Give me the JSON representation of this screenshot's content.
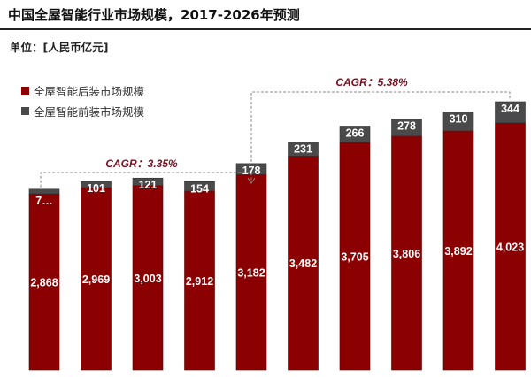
{
  "title": "中国全屋智能行业市场规模，2017-2026年预测",
  "unit": "单位：[人民币亿元]",
  "colors": {
    "after": "#8b0000",
    "front": "#4a4a4a"
  },
  "chart_data": {
    "type": "bar",
    "stacked": true,
    "title": "中国全屋智能行业市场规模，2017-2026年预测",
    "ylabel": "单位：[人民币亿元]",
    "legend": "top-left",
    "grid": false,
    "series": [
      {
        "name": "全屋智能后装市场规模",
        "values": [
          2868,
          2969,
          3003,
          2912,
          3182,
          3482,
          3705,
          3806,
          3892,
          4023
        ],
        "labels": [
          "2,868",
          "2,969",
          "3,003",
          "2,912",
          "3,182",
          "3,482",
          "3,705",
          "3,806",
          "3,892",
          "4,023"
        ]
      },
      {
        "name": "全屋智能前装市场规模",
        "values": [
          75,
          101,
          121,
          154,
          178,
          231,
          266,
          278,
          310,
          344
        ],
        "labels": [
          "7…",
          "101",
          "121",
          "154",
          "178",
          "231",
          "266",
          "278",
          "310",
          "344"
        ]
      }
    ],
    "annotations": [
      {
        "text": "CAGR：3.35%"
      },
      {
        "text": "CAGR：5.38%"
      }
    ],
    "ylim": [
      0,
      4367
    ]
  }
}
